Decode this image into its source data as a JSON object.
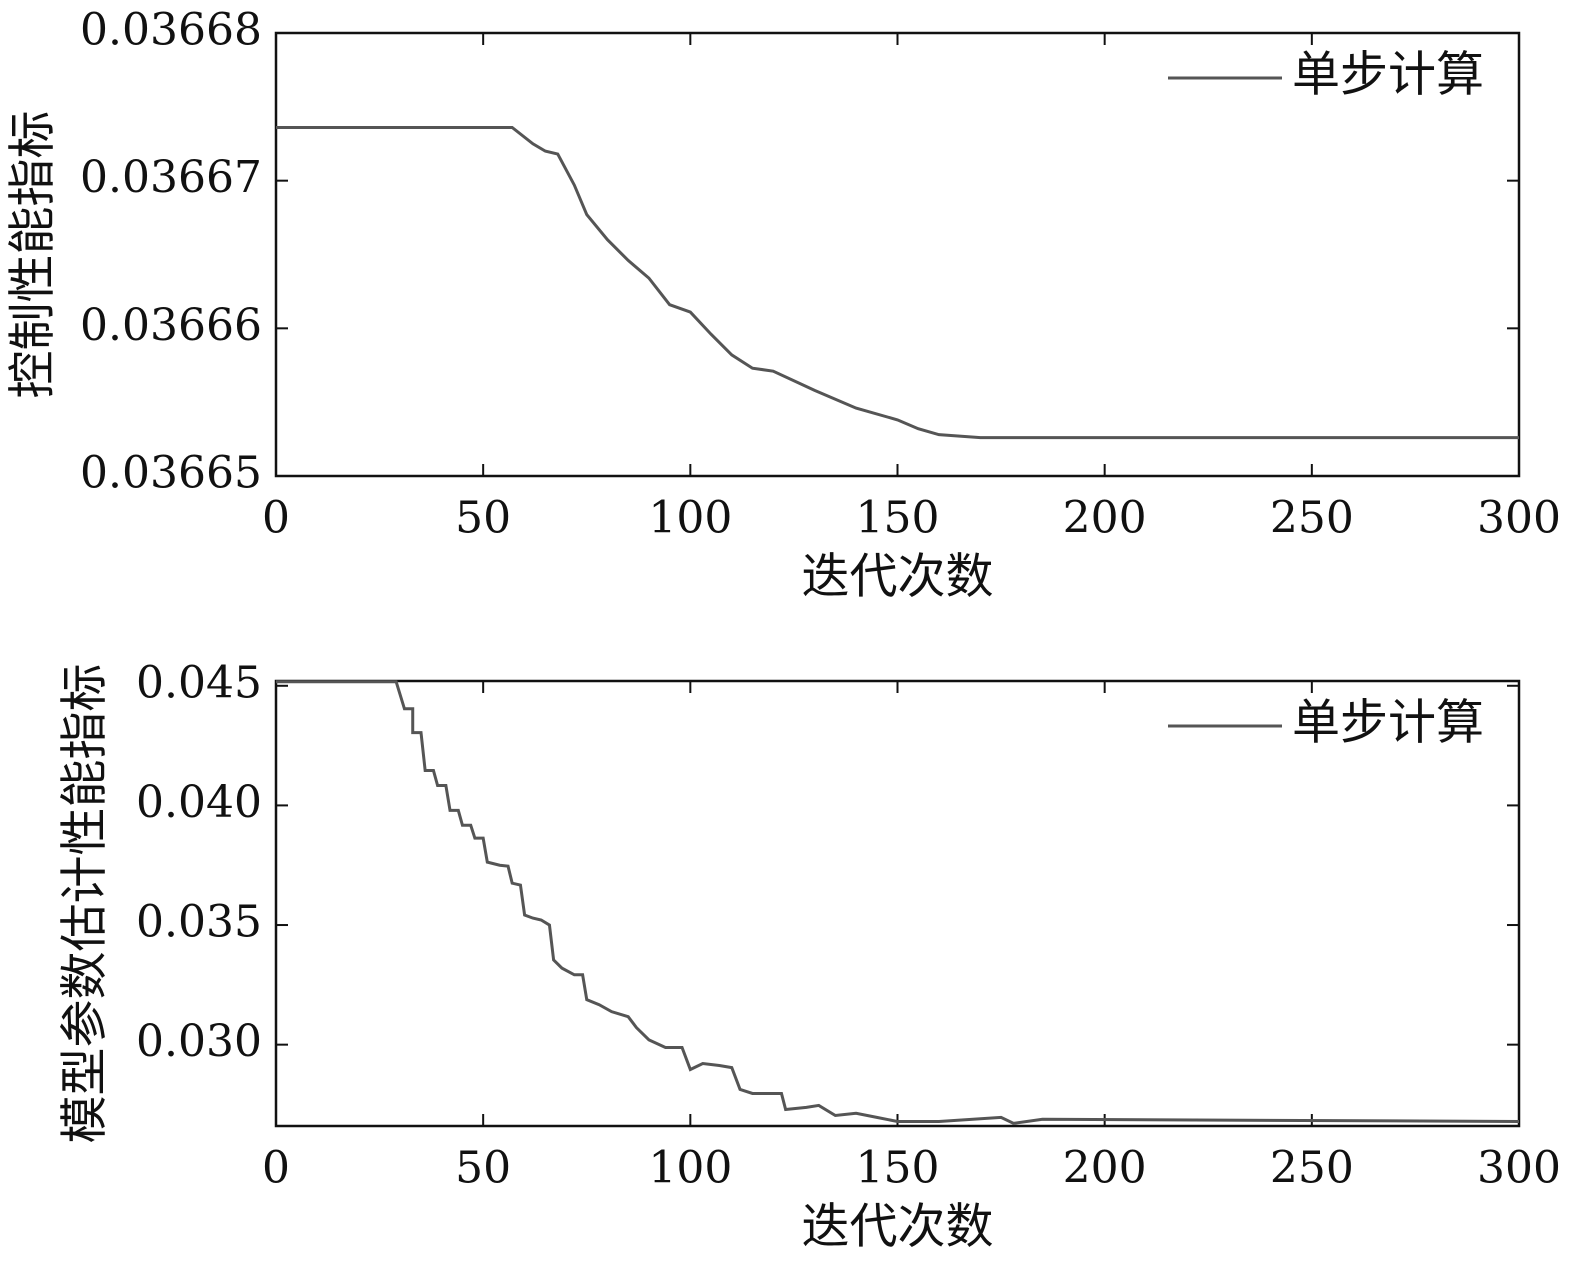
{
  "chart_data": [
    {
      "type": "line",
      "xlabel": "迭代次数",
      "ylabel": "控制性能指标",
      "x": [
        0,
        57,
        62,
        65,
        68,
        72,
        75,
        80,
        85,
        90,
        95,
        100,
        105,
        110,
        115,
        120,
        130,
        140,
        150,
        155,
        160,
        170,
        300
      ],
      "series": [
        {
          "name": "单步计算",
          "color": "#555555",
          "values": [
            0.0366736,
            0.0366736,
            0.0366725,
            0.036672,
            0.0366718,
            0.0366697,
            0.0366677,
            0.036666,
            0.0366646,
            0.0366634,
            0.0366616,
            0.0366611,
            0.0366596,
            0.0366582,
            0.0366573,
            0.0366571,
            0.0366558,
            0.0366546,
            0.0366538,
            0.0366532,
            0.0366528,
            0.0366526,
            0.0366526
          ]
        }
      ],
      "xlim": [
        0,
        300
      ],
      "xticks": [
        0,
        50,
        100,
        150,
        200,
        250,
        300
      ],
      "ylim": [
        0.03665,
        0.03668
      ],
      "yticks": [
        0.03665,
        0.03666,
        0.03667,
        0.03668
      ],
      "legend": "upper right"
    },
    {
      "type": "line",
      "xlabel": "迭代次数",
      "ylabel": "模型参数估计性能指标",
      "x": [
        0,
        29,
        31,
        33,
        33,
        35,
        36,
        38,
        39,
        41,
        42,
        44,
        45,
        47,
        48,
        50,
        51,
        54,
        56,
        57,
        59,
        60,
        62,
        64,
        66,
        67,
        69,
        72,
        74,
        75,
        78,
        81,
        85,
        87,
        90,
        94,
        98,
        100,
        103,
        107,
        110,
        112,
        115,
        122,
        123,
        128,
        131,
        135,
        140,
        145,
        150,
        160,
        175,
        178,
        185,
        300
      ],
      "series": [
        {
          "name": "单步计算",
          "color": "#555555",
          "values": [
            0.04517,
            0.04517,
            0.04404,
            0.04404,
            0.04304,
            0.04304,
            0.04146,
            0.04146,
            0.04083,
            0.04083,
            0.03979,
            0.03979,
            0.03917,
            0.03917,
            0.03863,
            0.03863,
            0.03763,
            0.0375,
            0.03746,
            0.03675,
            0.03667,
            0.03542,
            0.03529,
            0.03521,
            0.035,
            0.03354,
            0.0332,
            0.03292,
            0.03292,
            0.03188,
            0.03167,
            0.03138,
            0.03117,
            0.03071,
            0.0302,
            0.02988,
            0.02988,
            0.02896,
            0.02921,
            0.02913,
            0.02904,
            0.02813,
            0.02796,
            0.02796,
            0.02729,
            0.02738,
            0.02746,
            0.02704,
            0.02713,
            0.02696,
            0.02679,
            0.02679,
            0.02696,
            0.02671,
            0.02688,
            0.02679
          ]
        }
      ],
      "xlim": [
        0,
        300
      ],
      "xticks": [
        0,
        50,
        100,
        150,
        200,
        250,
        300
      ],
      "ylim": [
        0.0266,
        0.0452
      ],
      "yticks": [
        {
          "value": 0.03,
          "label": "0.030"
        },
        {
          "value": 0.035,
          "label": "0.035"
        },
        {
          "value": 0.04,
          "label": "0.040"
        },
        {
          "value": 0.045,
          "label": "0.045"
        }
      ],
      "legend": "upper right"
    }
  ]
}
